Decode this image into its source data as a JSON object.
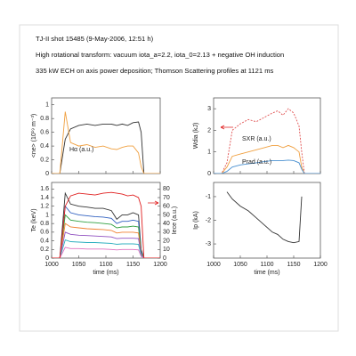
{
  "header": {
    "lines": [
      "TJ-II shot 15485 (9-May-2006, 12:51 h)",
      "High rotational transform: vacuum iota_a=2.2, iota_0=2.13 + negative OH induction",
      "335 kW ECH on axis power deposition; Thomson Scattering profiles at 1121 ms"
    ]
  },
  "chart_data": [
    {
      "type": "line",
      "ylabel": "<ne> (10¹⁹ m⁻³)",
      "annotations": [
        "Hα (a.u.)"
      ],
      "x": [
        1000,
        1015,
        1025,
        1035,
        1050,
        1065,
        1080,
        1095,
        1110,
        1120,
        1130,
        1140,
        1150,
        1160,
        1165,
        1170,
        1200
      ],
      "xlim": [
        1000,
        1200
      ],
      "xticks": [
        1000,
        1050,
        1100,
        1150,
        1200
      ],
      "ylim": [
        0,
        1.1
      ],
      "yticks": [
        0,
        0.2,
        0.4,
        0.6,
        0.8,
        1
      ],
      "series": [
        {
          "name": "ne",
          "color": "#333333",
          "values": [
            0,
            0,
            0.5,
            0.65,
            0.7,
            0.72,
            0.7,
            0.72,
            0.72,
            0.7,
            0.72,
            0.7,
            0.74,
            0.75,
            0.6,
            0,
            0
          ]
        },
        {
          "name": "Halpha",
          "color": "#f0a040",
          "values": [
            0,
            0,
            0.9,
            0.45,
            0.4,
            0.42,
            0.38,
            0.4,
            0.36,
            0.35,
            0.38,
            0.4,
            0.4,
            0.3,
            0.1,
            0,
            0
          ]
        }
      ]
    },
    {
      "type": "line",
      "ylabel": "Wdia (kJ)",
      "annotations": [
        "SXR (a.u.)",
        "Prad (a.u.)"
      ],
      "x": [
        1000,
        1015,
        1025,
        1035,
        1050,
        1065,
        1080,
        1095,
        1110,
        1120,
        1130,
        1140,
        1150,
        1160,
        1165,
        1170,
        1200
      ],
      "xlim": [
        1000,
        1200
      ],
      "xticks": [
        1000,
        1050,
        1100,
        1150,
        1200
      ],
      "ylim": [
        0,
        3.5
      ],
      "yticks": [
        0,
        1,
        2,
        3
      ],
      "series": [
        {
          "name": "Wdia",
          "color": "#e05050",
          "dash": true,
          "values": [
            0,
            0,
            0.5,
            2.0,
            2.3,
            2.5,
            2.4,
            2.6,
            2.8,
            2.9,
            2.7,
            3.0,
            2.8,
            2.2,
            1.0,
            0,
            0
          ]
        },
        {
          "name": "SXR",
          "color": "#f0a040",
          "values": [
            0,
            0,
            0.3,
            0.8,
            0.9,
            1.0,
            1.1,
            1.2,
            1.3,
            1.3,
            1.2,
            1.3,
            1.2,
            1.0,
            0.3,
            0,
            0
          ]
        },
        {
          "name": "Prad",
          "color": "#4a90d0",
          "values": [
            0,
            0,
            0.1,
            0.3,
            0.4,
            0.45,
            0.5,
            0.55,
            0.6,
            0.6,
            0.6,
            0.62,
            0.6,
            0.5,
            0.2,
            0,
            0
          ]
        }
      ]
    },
    {
      "type": "line",
      "ylabel": "Te (keV)",
      "y2label": "Iece (a.u.)",
      "xlabel": "time (ms)",
      "x": [
        1000,
        1015,
        1025,
        1035,
        1050,
        1065,
        1080,
        1095,
        1110,
        1120,
        1130,
        1140,
        1150,
        1160,
        1165,
        1170,
        1200
      ],
      "xlim": [
        1000,
        1200
      ],
      "xticks": [
        1000,
        1050,
        1100,
        1150,
        1200
      ],
      "ylim": [
        0,
        1.75
      ],
      "yticks": [
        0,
        0.2,
        0.4,
        0.6,
        0.8,
        1,
        1.2,
        1.4,
        1.6
      ],
      "y2lim": [
        0,
        87.5
      ],
      "y2ticks": [
        0,
        10,
        20,
        30,
        40,
        50,
        60,
        70,
        80
      ],
      "series": [
        {
          "name": "Te1",
          "color": "#333333",
          "values": [
            0,
            0,
            1.5,
            1.25,
            1.2,
            1.18,
            1.15,
            1.15,
            1.1,
            0.9,
            1.0,
            1.0,
            1.05,
            1.0,
            0.2,
            0,
            0
          ]
        },
        {
          "name": "Te2",
          "color": "#3060c0",
          "values": [
            0,
            0,
            1.2,
            1.05,
            1.0,
            0.98,
            0.96,
            0.95,
            0.92,
            0.8,
            0.85,
            0.85,
            0.88,
            0.85,
            0.15,
            0,
            0
          ]
        },
        {
          "name": "Te3",
          "color": "#30a040",
          "values": [
            0,
            0,
            1.0,
            0.88,
            0.85,
            0.83,
            0.82,
            0.8,
            0.78,
            0.7,
            0.72,
            0.72,
            0.74,
            0.72,
            0.12,
            0,
            0
          ]
        },
        {
          "name": "Te4",
          "color": "#f08030",
          "values": [
            0,
            0,
            0.8,
            0.72,
            0.7,
            0.68,
            0.67,
            0.66,
            0.64,
            0.58,
            0.6,
            0.6,
            0.6,
            0.58,
            0.1,
            0,
            0
          ]
        },
        {
          "name": "Te5",
          "color": "#9050c0",
          "values": [
            0,
            0,
            0.6,
            0.55,
            0.53,
            0.52,
            0.51,
            0.5,
            0.49,
            0.45,
            0.46,
            0.46,
            0.46,
            0.45,
            0.08,
            0,
            0
          ]
        },
        {
          "name": "Te6",
          "color": "#30b0c0",
          "values": [
            0,
            0,
            0.42,
            0.38,
            0.37,
            0.36,
            0.36,
            0.35,
            0.34,
            0.32,
            0.33,
            0.33,
            0.33,
            0.32,
            0.06,
            0,
            0
          ]
        },
        {
          "name": "Te7",
          "color": "#e070c0",
          "values": [
            0,
            0,
            0.25,
            0.22,
            0.22,
            0.21,
            0.21,
            0.21,
            0.2,
            0.19,
            0.2,
            0.2,
            0.2,
            0.19,
            0.04,
            0,
            0
          ]
        },
        {
          "name": "Iece",
          "color": "#e02020",
          "axis": "y2",
          "values": [
            0,
            0,
            60,
            72,
            75,
            74,
            73,
            75,
            76,
            75,
            74,
            72,
            73,
            70,
            60,
            0,
            0
          ]
        }
      ]
    },
    {
      "type": "line",
      "ylabel": "Ip (kA)",
      "xlabel": "time (ms)",
      "x": [
        1000,
        1015,
        1025,
        1035,
        1050,
        1065,
        1080,
        1095,
        1110,
        1120,
        1130,
        1140,
        1150,
        1160,
        1165,
        1170,
        1200
      ],
      "xlim": [
        1000,
        1200
      ],
      "xticks": [
        1000,
        1050,
        1100,
        1150,
        1200
      ],
      "ylim": [
        -3.6,
        -0.4
      ],
      "yticks": [
        -3,
        -2,
        -1
      ],
      "series": [
        {
          "name": "Ip",
          "color": "#333333",
          "values": [
            null,
            null,
            -0.8,
            -1.1,
            -1.4,
            -1.6,
            -1.9,
            -2.2,
            -2.5,
            -2.6,
            -2.8,
            -2.9,
            -2.95,
            -2.9,
            -1,
            null,
            null
          ]
        }
      ]
    }
  ]
}
